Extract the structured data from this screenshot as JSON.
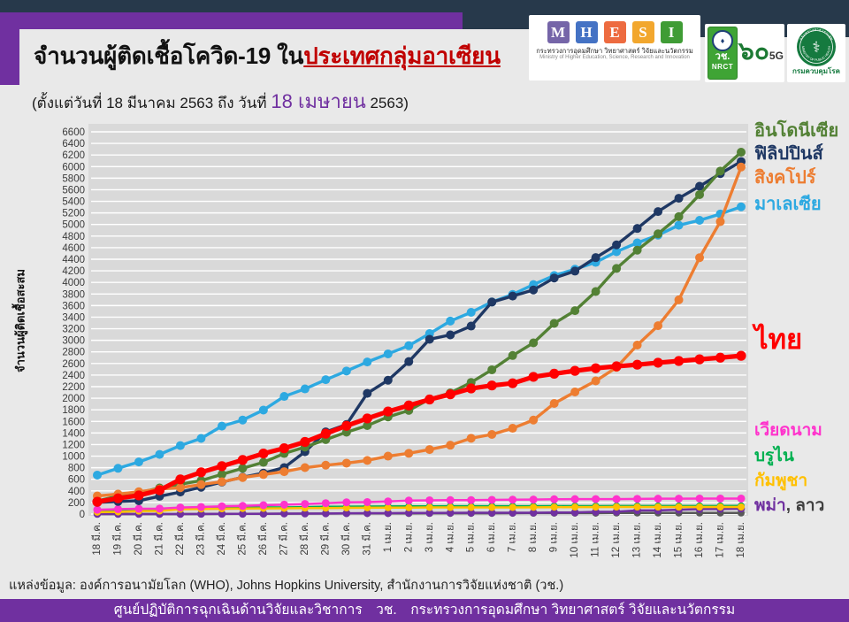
{
  "header": {
    "title_prefix": "จำนวนผู้ติดเชื้อโควิด-19 ใน",
    "title_highlight": "ประเทศกลุ่มอาเซียน",
    "subtitle_prefix": "(ตั้งแต่วันที่ 18 มีนาคม 2563 ถึง วันที่ ",
    "subtitle_highlight": "18 เมษายน",
    "subtitle_suffix": " 2563)",
    "logos": {
      "mhesi": {
        "letters": [
          "M",
          "H",
          "E",
          "S",
          "I"
        ],
        "letter_colors": [
          "#7565a8",
          "#4472c4",
          "#ed6b40",
          "#f2a72e",
          "#3f9c35"
        ],
        "caption_th": "กระทรวงการอุดมศึกษา วิทยาศาสตร์ วิจัยและนวัตกรรม",
        "caption_en": "Ministry of Higher Education, Science, Research and Innovation"
      },
      "nrct": {
        "emblem": "♦",
        "abbr_th": "วช.",
        "abbr_en": "NRCT"
      },
      "anniversary_5g": {
        "text": "๖๐",
        "sub": "5G"
      },
      "ddc": {
        "seal_top": "กระทรวงสาธารณสุข",
        "seal_bottom": "MINISTRY OF PUBLIC HEALTH",
        "seal_glyph": "⚕",
        "caption": "กรมควบคุมโรค",
        "seal_color": "#157a3f"
      }
    }
  },
  "chart_data": {
    "type": "line",
    "title": "จำนวนผู้ติดเชื้อโควิด-19 ในประเทศกลุ่มอาเซียน",
    "ylabel": "จำนวนผู้ติดเชื้อสะสม",
    "xlabel": "",
    "ylim": [
      0,
      6600
    ],
    "ytick_step": 200,
    "grid": true,
    "legend_position": "right",
    "categories": [
      "18 มี.ค.",
      "19 มี.ค.",
      "20 มี.ค.",
      "21 มี.ค.",
      "22 มี.ค.",
      "23 มี.ค.",
      "24 มี.ค.",
      "25 มี.ค.",
      "26 มี.ค.",
      "27 มี.ค.",
      "28 มี.ค.",
      "29 มี.ค.",
      "30 มี.ค.",
      "31 มี.ค.",
      "1 เม.ย.",
      "2 เม.ย.",
      "3 เม.ย.",
      "4 เม.ย.",
      "5 เม.ย.",
      "6 เม.ย.",
      "7 เม.ย.",
      "8 เม.ย.",
      "9 เม.ย.",
      "10 เม.ย.",
      "11 เม.ย.",
      "12 เม.ย.",
      "13 เม.ย.",
      "14 เม.ย.",
      "15 เม.ย.",
      "16 เม.ย.",
      "17 เม.ย.",
      "18 เม.ย."
    ],
    "series": [
      {
        "key": "laos",
        "name": "ลาว",
        "color": "#595959",
        "width": 2.5,
        "r": 4.0,
        "values": [
          0,
          0,
          0,
          0,
          0,
          0,
          2,
          3,
          6,
          6,
          8,
          8,
          9,
          10,
          10,
          10,
          11,
          12,
          12,
          12,
          14,
          15,
          16,
          16,
          16,
          19,
          19,
          19,
          19,
          19,
          19,
          19
        ]
      },
      {
        "key": "myanmar",
        "name": "พม่า",
        "color": "#7030a0",
        "width": 2.5,
        "r": 4.3,
        "values": [
          0,
          0,
          0,
          0,
          0,
          2,
          3,
          3,
          4,
          8,
          8,
          10,
          14,
          15,
          16,
          20,
          20,
          21,
          22,
          22,
          22,
          23,
          27,
          28,
          38,
          41,
          63,
          63,
          74,
          85,
          88,
          94
        ]
      },
      {
        "key": "brunei",
        "name": "บรูไน",
        "color": "#00b050",
        "width": 2.5,
        "r": 4.0,
        "values": [
          68,
          75,
          78,
          83,
          88,
          91,
          104,
          109,
          114,
          115,
          120,
          126,
          127,
          129,
          131,
          133,
          134,
          135,
          135,
          136,
          136,
          136,
          138,
          138,
          138,
          139,
          139,
          139,
          139,
          140,
          140,
          141
        ]
      },
      {
        "key": "cambodia",
        "name": "กัมพูชา",
        "color": "#ffc000",
        "width": 2.5,
        "r": 4.0,
        "values": [
          33,
          37,
          51,
          53,
          84,
          87,
          91,
          96,
          98,
          99,
          103,
          103,
          107,
          109,
          110,
          110,
          114,
          114,
          114,
          114,
          115,
          117,
          119,
          120,
          120,
          122,
          122,
          122,
          122,
          122,
          122,
          122
        ]
      },
      {
        "key": "vietnam",
        "name": "เวียดนาม",
        "color": "#ff33cc",
        "width": 2.5,
        "r": 4.5,
        "values": [
          75,
          85,
          91,
          94,
          113,
          123,
          134,
          141,
          153,
          163,
          174,
          188,
          203,
          207,
          218,
          233,
          237,
          240,
          241,
          245,
          249,
          251,
          255,
          257,
          258,
          258,
          262,
          265,
          266,
          268,
          268,
          268
        ]
      },
      {
        "key": "malaysia",
        "name": "มาเลเซีย",
        "color": "#2da9e1",
        "width": 3.4,
        "r": 5.0,
        "values": [
          673,
          790,
          900,
          1030,
          1183,
          1306,
          1518,
          1624,
          1796,
          2031,
          2161,
          2320,
          2470,
          2626,
          2766,
          2908,
          3116,
          3333,
          3483,
          3662,
          3793,
          3963,
          4119,
          4228,
          4346,
          4530,
          4683,
          4817,
          4987,
          5072,
          5182,
          5305
        ]
      },
      {
        "key": "philippines",
        "name": "ฟิลิปปินส์",
        "color": "#1f3864",
        "width": 3.4,
        "r": 5.0,
        "values": [
          202,
          217,
          230,
          307,
          380,
          462,
          552,
          636,
          707,
          803,
          1075,
          1418,
          1546,
          2084,
          2311,
          2633,
          3018,
          3094,
          3246,
          3660,
          3764,
          3870,
          4076,
          4195,
          4428,
          4648,
          4932,
          5223,
          5453,
          5660,
          5878,
          6087
        ]
      },
      {
        "key": "indonesia",
        "name": "อินโดนีเซีย",
        "color": "#538135",
        "width": 3.4,
        "r": 5.0,
        "values": [
          227,
          309,
          369,
          450,
          514,
          579,
          686,
          790,
          893,
          1046,
          1155,
          1285,
          1414,
          1528,
          1677,
          1790,
          1986,
          2092,
          2273,
          2491,
          2738,
          2956,
          3293,
          3512,
          3842,
          4241,
          4557,
          4839,
          5136,
          5516,
          5923,
          6248
        ]
      },
      {
        "key": "singapore",
        "name": "สิงคโปร์",
        "color": "#ed7d31",
        "width": 3.4,
        "r": 5.0,
        "values": [
          313,
          345,
          385,
          432,
          455,
          509,
          558,
          631,
          683,
          732,
          802,
          844,
          879,
          926,
          1000,
          1049,
          1114,
          1189,
          1309,
          1375,
          1481,
          1623,
          1910,
          2108,
          2299,
          2532,
          2918,
          3252,
          3699,
          4427,
          5050,
          5992
        ]
      },
      {
        "key": "thailand",
        "name": "ไทย",
        "color": "#ff0000",
        "width": 5.2,
        "r": 5.6,
        "values": [
          212,
          272,
          322,
          411,
          599,
          721,
          827,
          934,
          1045,
          1136,
          1245,
          1388,
          1524,
          1651,
          1771,
          1875,
          1978,
          2067,
          2169,
          2220,
          2258,
          2369,
          2423,
          2473,
          2518,
          2551,
          2579,
          2613,
          2643,
          2672,
          2700,
          2733
        ]
      }
    ],
    "legend": [
      {
        "label": "อินโดนีเซีย",
        "color": "#538135",
        "y": 138,
        "size": 20
      },
      {
        "label": "ฟิลิปปินส์",
        "color": "#1f3864",
        "y": 164,
        "size": 20
      },
      {
        "label": "สิงคโปร์",
        "color": "#ed7d31",
        "y": 191,
        "size": 20
      },
      {
        "label": "มาเลเซีย",
        "color": "#2da9e1",
        "y": 221,
        "size": 20
      },
      {
        "label": "ไทย",
        "color": "#ff0000",
        "y": 368,
        "size": 31
      },
      {
        "label": "เวียดนาม",
        "color": "#ff33cc",
        "y": 477,
        "size": 19
      },
      {
        "label": "บรูไน",
        "color": "#00b050",
        "y": 506,
        "size": 19
      },
      {
        "label": "กัมพูชา",
        "color": "#ffc000",
        "y": 534,
        "size": 19
      },
      {
        "parts": [
          {
            "text": "พม่า",
            "color": "#7030a0"
          },
          {
            "text": ", ลาว",
            "color": "#404040"
          }
        ],
        "y": 562,
        "size": 19
      }
    ]
  },
  "source_line": "แหล่งข้อมูล: องค์การอนามัยโลก (WHO), Johns Hopkins University, สำนักงานการวิจัยแห่งชาติ (วช.)",
  "footer": {
    "text": "ศูนย์ปฏิบัติการฉุกเฉินด้านวิจัยและวิชาการ วช. กระทรวงการอุดมศึกษา วิทยาศาสตร์ วิจัยและนวัตกรรม"
  },
  "colors": {
    "top_bar": "#27394b",
    "accent_purple": "#7030a0",
    "title_highlight": "#c00000",
    "page_bg": "#e9e9e9",
    "plot_bg": "#d9d9d9",
    "gridline": "#ffffff"
  }
}
